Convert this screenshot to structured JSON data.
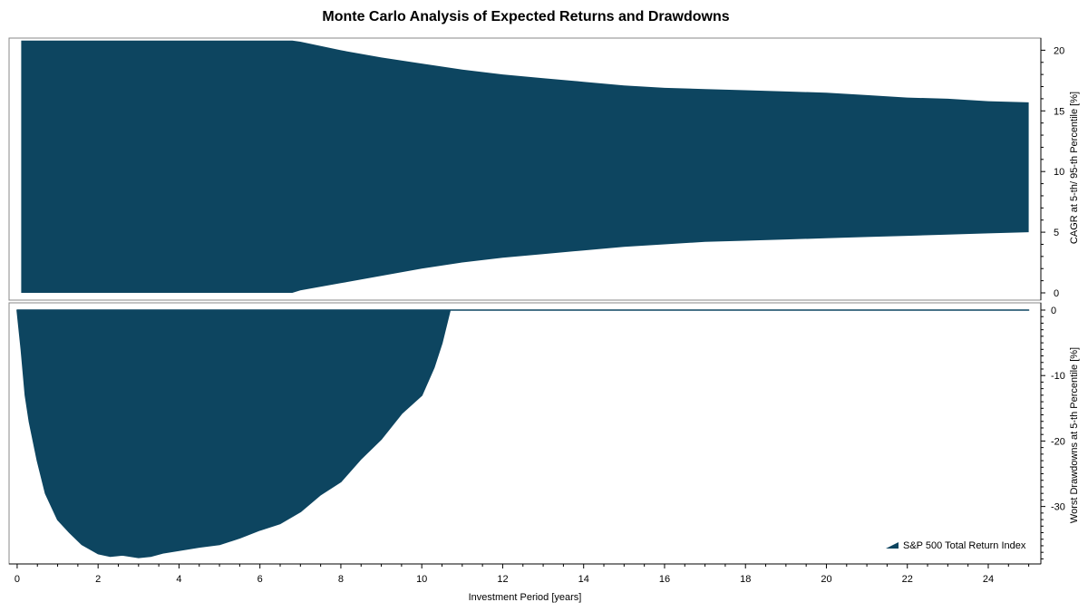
{
  "title": "Monte Carlo Analysis of Expected Returns and Drawdowns",
  "colors": {
    "area": "#0d4560",
    "axis": "#000000"
  },
  "chart_data": [
    {
      "type": "area",
      "panel": "top",
      "ylabel": "CAGR at 5-th/ 95-th Percentile [%]",
      "ylim": [
        0,
        21
      ],
      "yticks": [
        0,
        5,
        10,
        15,
        20
      ],
      "grid": false,
      "x": [
        0.1,
        1,
        2,
        3,
        4,
        5,
        6,
        6.8,
        7,
        8,
        9,
        10,
        11,
        12,
        13,
        14,
        15,
        16,
        17,
        18,
        19,
        20,
        21,
        22,
        23,
        24,
        25
      ],
      "series": [
        {
          "role": "upper",
          "values": [
            20.8,
            20.8,
            20.8,
            20.8,
            20.8,
            20.8,
            20.8,
            20.8,
            20.7,
            20.0,
            19.4,
            18.9,
            18.4,
            18.0,
            17.7,
            17.4,
            17.1,
            16.9,
            16.8,
            16.7,
            16.6,
            16.5,
            16.3,
            16.1,
            16.0,
            15.8,
            15.7
          ]
        },
        {
          "role": "lower",
          "values": [
            0,
            0,
            0,
            0,
            0,
            0,
            0,
            0,
            0.2,
            0.8,
            1.4,
            2.0,
            2.5,
            2.9,
            3.2,
            3.5,
            3.8,
            4.0,
            4.2,
            4.3,
            4.4,
            4.5,
            4.6,
            4.7,
            4.8,
            4.9,
            5.0
          ]
        }
      ]
    },
    {
      "type": "area",
      "panel": "bottom",
      "ylabel": "Worst Drawdowns at 5-th Percentile [%]",
      "xlabel": "Investment Period [years]",
      "ylim": [
        -38.5,
        0
      ],
      "yticks": [
        0,
        -10,
        -20,
        -30
      ],
      "xlim": [
        -0.2,
        25.3
      ],
      "xticks": [
        0,
        2,
        4,
        6,
        8,
        10,
        12,
        14,
        16,
        18,
        20,
        22,
        24
      ],
      "grid": false,
      "x": [
        0,
        0.1,
        0.2,
        0.3,
        0.5,
        0.7,
        1.0,
        1.3,
        1.6,
        2.0,
        2.3,
        2.6,
        3.0,
        3.3,
        3.6,
        4.0,
        4.5,
        5.0,
        5.5,
        6.0,
        6.5,
        7.0,
        7.5,
        8.0,
        8.5,
        9.0,
        9.5,
        10.0,
        10.3,
        10.5,
        10.7,
        25.0
      ],
      "values": [
        0,
        -6,
        -13,
        -17,
        -23,
        -28,
        -32,
        -34,
        -35.8,
        -37.2,
        -37.6,
        -37.4,
        -37.8,
        -37.6,
        -37.1,
        -36.7,
        -36.2,
        -35.8,
        -34.8,
        -33.6,
        -32.6,
        -30.8,
        -28.2,
        -26.2,
        -22.7,
        -19.7,
        -15.8,
        -13.0,
        -8.8,
        -5.0,
        0,
        0
      ],
      "legend": {
        "label": "S&P 500 Total Return Index",
        "position": "bottom-right"
      }
    }
  ]
}
